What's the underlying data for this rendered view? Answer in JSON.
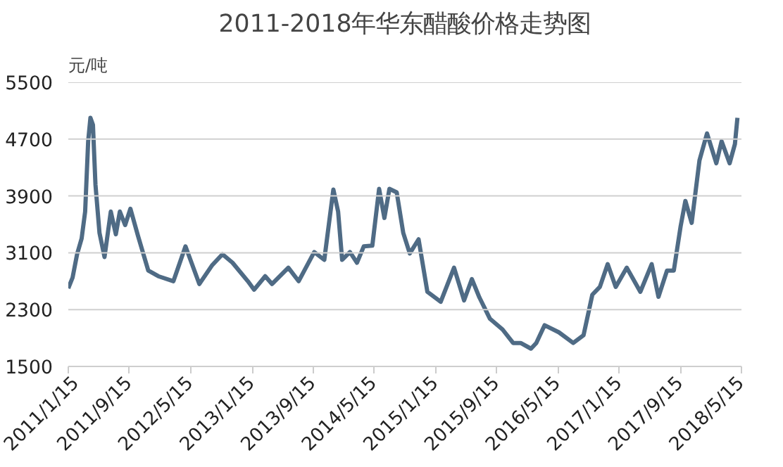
{
  "chart_data": {
    "type": "line",
    "title": "2011-2018年华东醋酸价格走势图",
    "ylabel": "元/吨",
    "x": [
      "2011-01-15",
      "2011-02-01",
      "2011-02-19",
      "2011-03-09",
      "2011-03-23",
      "2011-04-04",
      "2011-04-13",
      "2011-04-23",
      "2011-05-03",
      "2011-05-19",
      "2011-06-08",
      "2011-07-03",
      "2011-07-23",
      "2011-08-08",
      "2011-08-29",
      "2011-09-19",
      "2011-10-19",
      "2011-11-29",
      "2012-01-08",
      "2012-03-08",
      "2012-04-25",
      "2012-06-19",
      "2012-08-08",
      "2012-09-19",
      "2012-10-29",
      "2012-12-29",
      "2013-01-23",
      "2013-03-08",
      "2013-04-04",
      "2013-06-08",
      "2013-07-19",
      "2013-09-19",
      "2013-10-29",
      "2013-12-04",
      "2013-12-23",
      "2014-01-08",
      "2014-02-08",
      "2014-03-08",
      "2014-04-04",
      "2014-05-08",
      "2014-06-04",
      "2014-06-25",
      "2014-07-15",
      "2014-08-13",
      "2014-09-08",
      "2014-10-04",
      "2014-11-08",
      "2014-12-13",
      "2015-02-04",
      "2015-03-29",
      "2015-05-08",
      "2015-06-08",
      "2015-07-08",
      "2015-08-19",
      "2015-10-08",
      "2015-11-19",
      "2015-12-19",
      "2016-01-29",
      "2016-02-19",
      "2016-03-23",
      "2016-05-19",
      "2016-07-15",
      "2016-08-25",
      "2016-09-29",
      "2016-10-29",
      "2016-11-29",
      "2016-12-31",
      "2017-02-13",
      "2017-04-08",
      "2017-05-23",
      "2017-06-19",
      "2017-07-23",
      "2017-08-19",
      "2017-09-15",
      "2017-10-04",
      "2017-10-29",
      "2017-11-29",
      "2017-12-29",
      "2018-02-04",
      "2018-02-25",
      "2018-03-29",
      "2018-04-19",
      "2018-04-29"
    ],
    "series": [
      {
        "color": "#4f6b85",
        "values": [
          2600,
          2750,
          3080,
          3300,
          3680,
          4670,
          5000,
          4900,
          4060,
          3380,
          3040,
          3680,
          3360,
          3680,
          3490,
          3720,
          3340,
          2850,
          2770,
          2700,
          3190,
          2660,
          2920,
          3080,
          2960,
          2700,
          2580,
          2770,
          2660,
          2890,
          2700,
          3110,
          3000,
          3990,
          3680,
          3000,
          3110,
          2960,
          3190,
          3200,
          4000,
          3590,
          4000,
          3950,
          3380,
          3090,
          3290,
          2550,
          2410,
          2890,
          2430,
          2730,
          2470,
          2170,
          2020,
          1830,
          1830,
          1750,
          1830,
          2080,
          1980,
          1830,
          1940,
          2510,
          2620,
          2940,
          2620,
          2890,
          2550,
          2940,
          2480,
          2850,
          2850,
          3470,
          3830,
          3520,
          4400,
          4780,
          4360,
          4670,
          4360,
          4630,
          5000
        ]
      }
    ],
    "xlim": [
      "2011-01-15",
      "2018-05-15"
    ],
    "xticks": [
      {
        "value": "2011-01-15",
        "label": "2011/1/15"
      },
      {
        "value": "2011-09-15",
        "label": "2011/9/15"
      },
      {
        "value": "2012-05-15",
        "label": "2012/5/15"
      },
      {
        "value": "2013-01-15",
        "label": "2013/1/15"
      },
      {
        "value": "2013-09-15",
        "label": "2013/9/15"
      },
      {
        "value": "2014-05-15",
        "label": "2014/5/15"
      },
      {
        "value": "2015-01-15",
        "label": "2015/1/15"
      },
      {
        "value": "2015-09-15",
        "label": "2015/9/15"
      },
      {
        "value": "2016-05-15",
        "label": "2016/5/15"
      },
      {
        "value": "2017-01-15",
        "label": "2017/1/15"
      },
      {
        "value": "2017-09-15",
        "label": "2017/9/15"
      },
      {
        "value": "2018-05-15",
        "label": "2018/5/15"
      }
    ],
    "ylim": [
      1500,
      5500
    ],
    "yticks": [
      1500,
      2300,
      3100,
      3900,
      4700,
      5500
    ],
    "grid": "y",
    "marker": "none",
    "line_style": "solid"
  }
}
